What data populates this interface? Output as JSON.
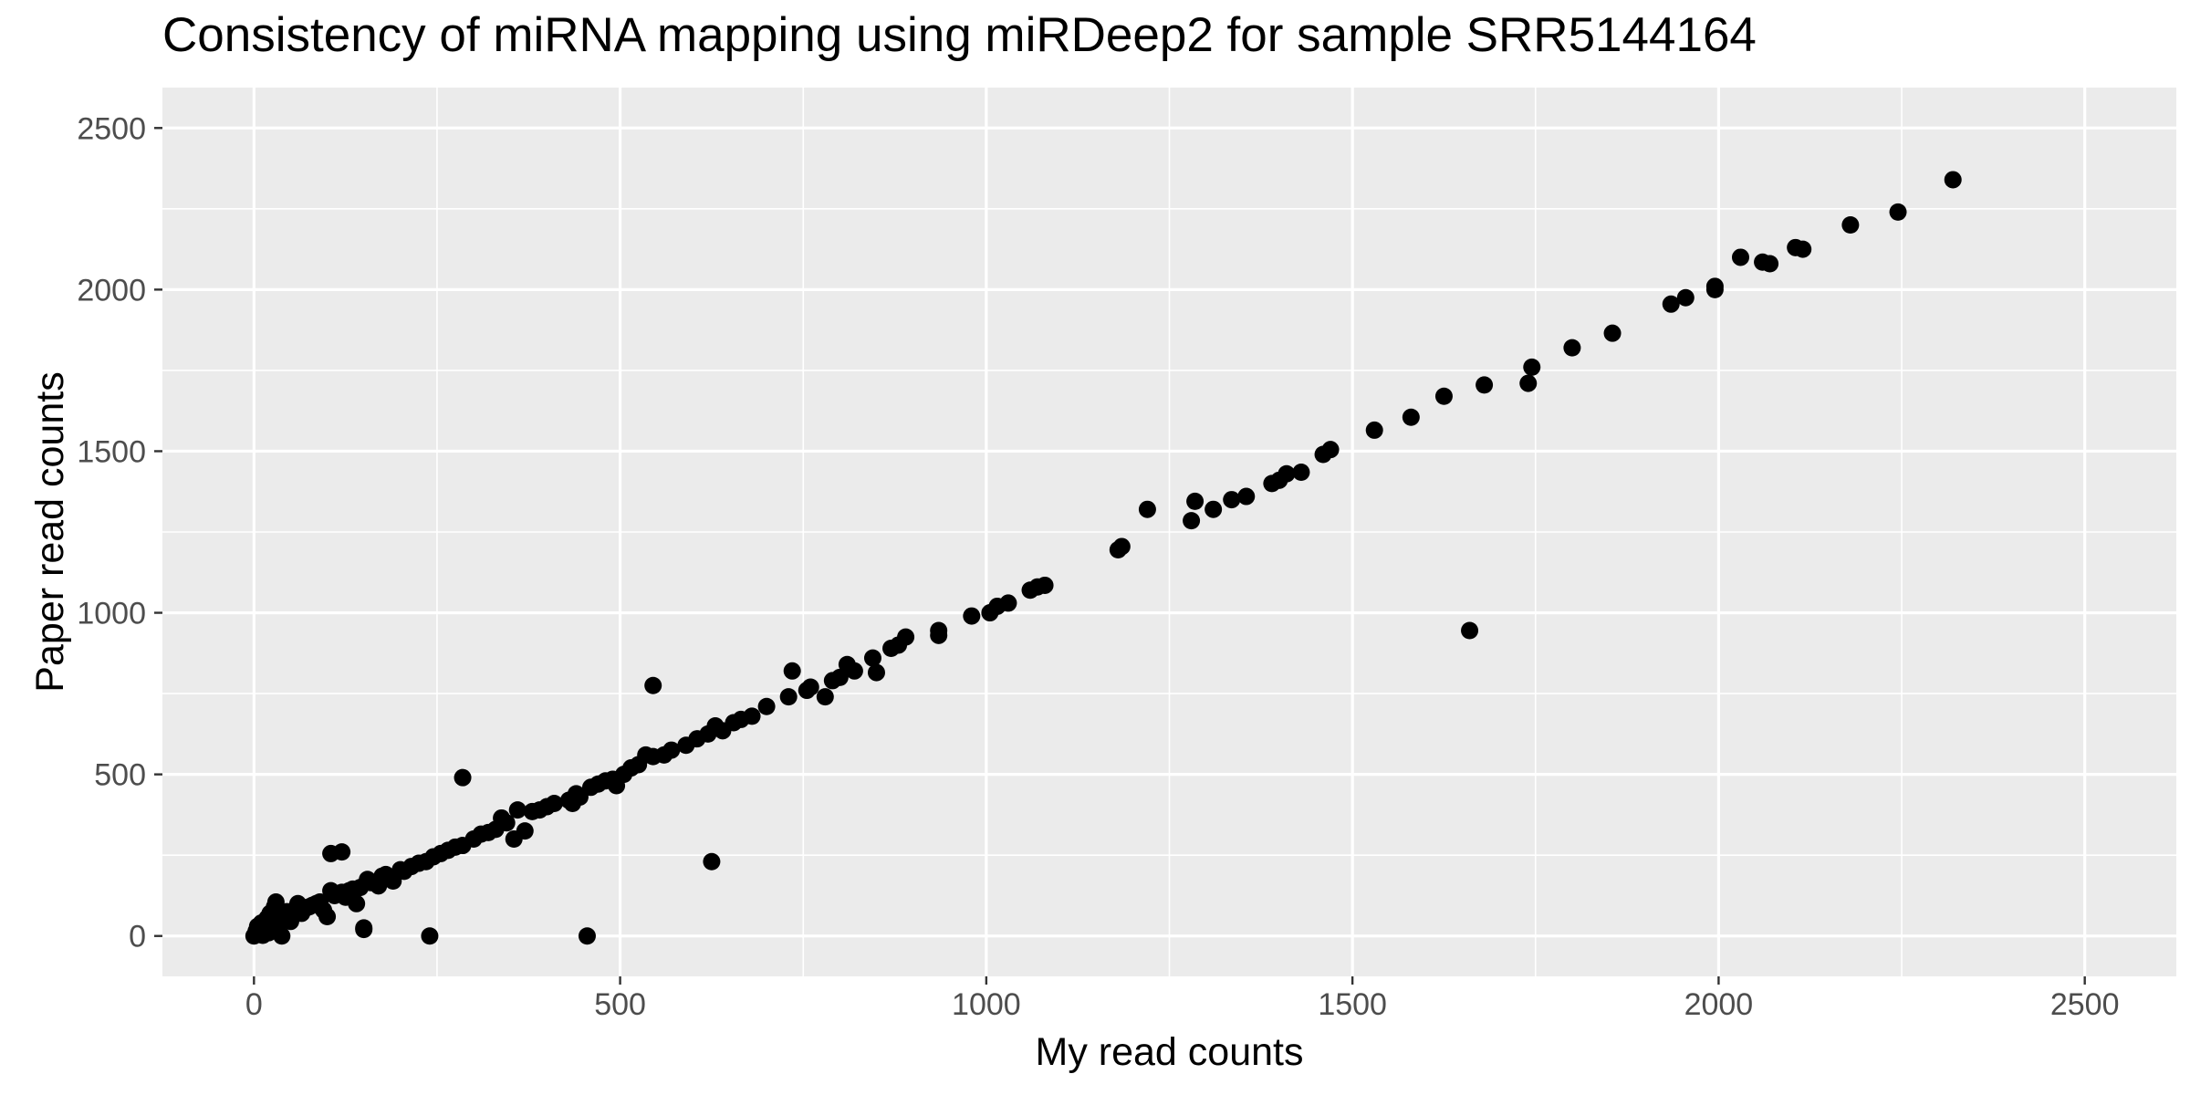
{
  "chart_data": {
    "type": "scatter",
    "title": "Consistency of miRNA mapping using miRDeep2 for sample SRR5144164",
    "xlabel": "My read counts",
    "ylabel": "Paper read counts",
    "xlim": [
      -125,
      2625
    ],
    "ylim": [
      -125,
      2625
    ],
    "x_ticks": [
      0,
      500,
      1000,
      1500,
      2000,
      2500
    ],
    "y_ticks": [
      0,
      500,
      1000,
      1500,
      2000,
      2500
    ],
    "grid": true,
    "legend": "none",
    "colors": {
      "panel": "#ebebeb",
      "grid": "#ffffff",
      "point": "#000000",
      "tick": "#4d4d4d"
    },
    "series": [
      {
        "points": [
          [
            0,
            0
          ],
          [
            2,
            5
          ],
          [
            3,
            15
          ],
          [
            5,
            30
          ],
          [
            8,
            10
          ],
          [
            10,
            40
          ],
          [
            12,
            2
          ],
          [
            15,
            25
          ],
          [
            18,
            55
          ],
          [
            20,
            10
          ],
          [
            22,
            70
          ],
          [
            25,
            35
          ],
          [
            28,
            90
          ],
          [
            30,
            105
          ],
          [
            32,
            20
          ],
          [
            35,
            50
          ],
          [
            38,
            0
          ],
          [
            40,
            65
          ],
          [
            45,
            75
          ],
          [
            50,
            45
          ],
          [
            55,
            80
          ],
          [
            60,
            100
          ],
          [
            65,
            70
          ],
          [
            70,
            85
          ],
          [
            75,
            90
          ],
          [
            80,
            95
          ],
          [
            85,
            100
          ],
          [
            90,
            105
          ],
          [
            95,
            80
          ],
          [
            100,
            60
          ],
          [
            105,
            140
          ],
          [
            110,
            125
          ],
          [
            115,
            130
          ],
          [
            120,
            135
          ],
          [
            125,
            120
          ],
          [
            130,
            140
          ],
          [
            135,
            145
          ],
          [
            140,
            100
          ],
          [
            145,
            150
          ],
          [
            150,
            20
          ],
          [
            155,
            175
          ],
          [
            160,
            165
          ],
          [
            170,
            155
          ],
          [
            175,
            185
          ],
          [
            180,
            190
          ],
          [
            190,
            170
          ],
          [
            200,
            205
          ],
          [
            205,
            200
          ],
          [
            215,
            215
          ],
          [
            225,
            225
          ],
          [
            235,
            230
          ],
          [
            245,
            245
          ],
          [
            255,
            255
          ],
          [
            265,
            265
          ],
          [
            275,
            275
          ],
          [
            285,
            280
          ],
          [
            300,
            300
          ],
          [
            310,
            315
          ],
          [
            320,
            320
          ],
          [
            330,
            330
          ],
          [
            338,
            365
          ],
          [
            345,
            350
          ],
          [
            355,
            300
          ],
          [
            360,
            390
          ],
          [
            370,
            325
          ],
          [
            380,
            385
          ],
          [
            390,
            390
          ],
          [
            400,
            400
          ],
          [
            410,
            410
          ],
          [
            430,
            420
          ],
          [
            435,
            410
          ],
          [
            440,
            440
          ],
          [
            445,
            430
          ],
          [
            460,
            460
          ],
          [
            470,
            470
          ],
          [
            480,
            480
          ],
          [
            490,
            485
          ],
          [
            495,
            465
          ],
          [
            505,
            500
          ],
          [
            515,
            520
          ],
          [
            525,
            530
          ],
          [
            535,
            560
          ],
          [
            545,
            555
          ],
          [
            560,
            560
          ],
          [
            570,
            575
          ],
          [
            590,
            590
          ],
          [
            605,
            610
          ],
          [
            620,
            625
          ],
          [
            630,
            650
          ],
          [
            640,
            635
          ],
          [
            655,
            660
          ],
          [
            665,
            670
          ],
          [
            680,
            680
          ],
          [
            700,
            710
          ],
          [
            730,
            740
          ],
          [
            735,
            820
          ],
          [
            755,
            760
          ],
          [
            760,
            770
          ],
          [
            780,
            740
          ],
          [
            790,
            790
          ],
          [
            800,
            800
          ],
          [
            810,
            840
          ],
          [
            820,
            820
          ],
          [
            845,
            860
          ],
          [
            850,
            815
          ],
          [
            870,
            890
          ],
          [
            880,
            900
          ],
          [
            890,
            925
          ],
          [
            935,
            930
          ],
          [
            935,
            945
          ],
          [
            980,
            990
          ],
          [
            1005,
            1000
          ],
          [
            1015,
            1020
          ],
          [
            1030,
            1030
          ],
          [
            1060,
            1070
          ],
          [
            1070,
            1080
          ],
          [
            1080,
            1085
          ],
          [
            1180,
            1195
          ],
          [
            1185,
            1205
          ],
          [
            1220,
            1320
          ],
          [
            1280,
            1285
          ],
          [
            1285,
            1345
          ],
          [
            1310,
            1320
          ],
          [
            1335,
            1350
          ],
          [
            1355,
            1360
          ],
          [
            1390,
            1400
          ],
          [
            1400,
            1410
          ],
          [
            1410,
            1430
          ],
          [
            1430,
            1435
          ],
          [
            1460,
            1490
          ],
          [
            1470,
            1505
          ],
          [
            1530,
            1565
          ],
          [
            1580,
            1605
          ],
          [
            1625,
            1670
          ],
          [
            1680,
            1705
          ],
          [
            1740,
            1710
          ],
          [
            1745,
            1760
          ],
          [
            1800,
            1820
          ],
          [
            1855,
            1865
          ],
          [
            1935,
            1955
          ],
          [
            1955,
            1975
          ],
          [
            1995,
            2000
          ],
          [
            1995,
            2010
          ],
          [
            2030,
            2100
          ],
          [
            2060,
            2085
          ],
          [
            2070,
            2080
          ],
          [
            2105,
            2130
          ],
          [
            2115,
            2125
          ],
          [
            2180,
            2200
          ],
          [
            2245,
            2240
          ],
          [
            2320,
            2340
          ],
          [
            1660,
            945
          ],
          [
            625,
            230
          ],
          [
            455,
            0
          ],
          [
            240,
            0
          ],
          [
            285,
            490
          ],
          [
            545,
            775
          ],
          [
            105,
            255
          ],
          [
            120,
            260
          ],
          [
            150,
            25
          ]
        ]
      }
    ]
  }
}
